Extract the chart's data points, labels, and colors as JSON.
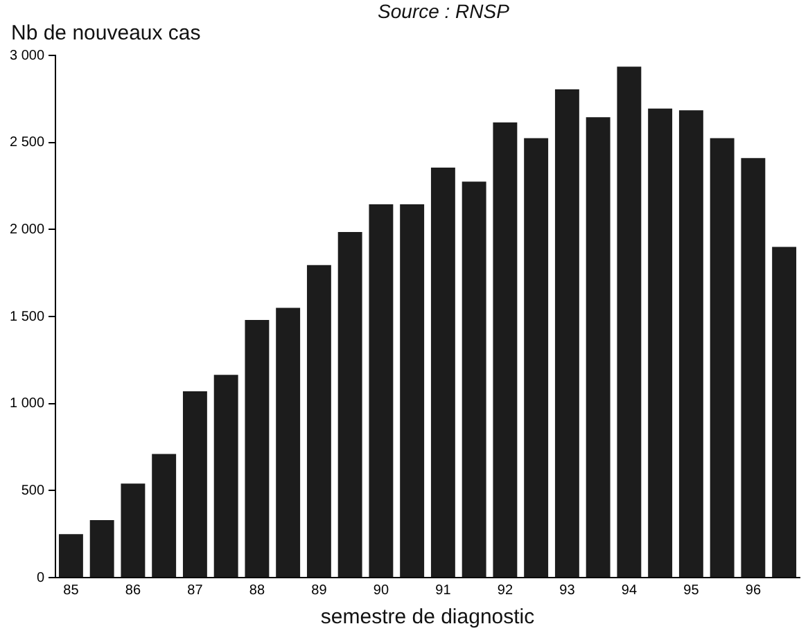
{
  "chart_data": {
    "type": "bar",
    "annotations": [
      "Source : RNSP"
    ],
    "ylabel": "Nb de nouveaux cas",
    "xlabel": "semestre de diagnostic",
    "categories": [
      "85",
      null,
      "86",
      null,
      "87",
      null,
      "88",
      null,
      "89",
      null,
      "90",
      null,
      "91",
      null,
      "92",
      null,
      "93",
      null,
      "94",
      null,
      "95",
      null,
      "96",
      null
    ],
    "values": [
      250,
      330,
      540,
      710,
      1070,
      1165,
      1480,
      1550,
      1795,
      1985,
      2145,
      2145,
      2355,
      2275,
      2615,
      2525,
      2805,
      2645,
      2935,
      2695,
      2685,
      2525,
      2410,
      1900
    ],
    "color": "#1c1c1c",
    "ylim": [
      0,
      3000
    ],
    "yticks": [
      0,
      500,
      {
        "value": 1000,
        "label": "1 000"
      },
      {
        "value": 1500,
        "label": "1 500"
      },
      {
        "value": 2000,
        "label": "2 000"
      },
      {
        "value": 2500,
        "label": "2 500"
      },
      {
        "value": 3000,
        "label": "3 000"
      }
    ],
    "grid": false
  }
}
